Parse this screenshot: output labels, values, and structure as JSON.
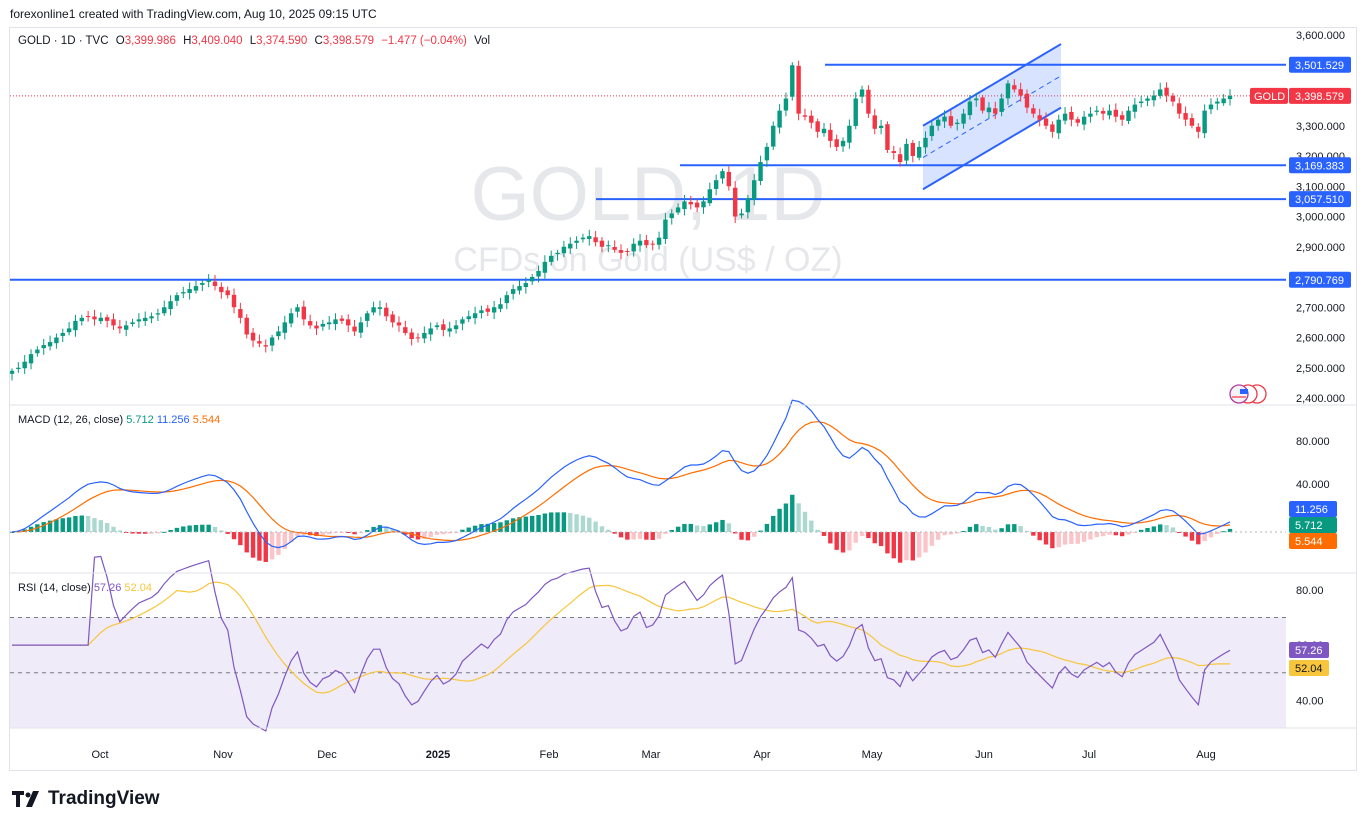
{
  "header": {
    "credit": "forexonline1 created with TradingView.com, Aug 10, 2025 09:15 UTC"
  },
  "legend": {
    "symbol": "GOLD · 1D · TVC",
    "open_label": "O",
    "open": "3,399.986",
    "high_label": "H",
    "high": "3,409.040",
    "low_label": "L",
    "low": "3,374.590",
    "close_label": "C",
    "close": "3,398.579",
    "change": "−1.477 (−0.04%)",
    "vol_label": "Vol"
  },
  "watermark": {
    "title": "GOLD, 1D",
    "subtitle": "CFDs on Gold (US$ / OZ)"
  },
  "macd_legend": {
    "label": "MACD (12, 26, close)",
    "v1": "5.712",
    "v2": "11.256",
    "v3": "5.544"
  },
  "rsi_legend": {
    "label": "RSI (14, close)",
    "v1": "57.26",
    "v2": "52.04"
  },
  "brand": {
    "name": "TradingView"
  },
  "colors": {
    "up": "#089981",
    "down": "#f23645",
    "macd": "#2962ff",
    "signal": "#ff6d00",
    "rsi": "#7e57c2",
    "rsi_ma": "#f7c63c",
    "line": "#2962ff"
  },
  "chart_data": [
    {
      "type": "candlestick",
      "title": "GOLD · 1D · TVC",
      "ylim": [
        2400,
        3600
      ],
      "y_ticks": [
        "3,600.000",
        "3,500.000",
        "3,400.000",
        "3,300.000",
        "3,200.000",
        "3,100.000",
        "3,000.000",
        "2,900.000",
        "2,800.000",
        "2,700.000",
        "2,600.000",
        "2,500.000",
        "2,400.000"
      ],
      "x_ticks": [
        "Oct",
        "Nov",
        "Dec",
        "2025",
        "Feb",
        "Mar",
        "Apr",
        "May",
        "Jun",
        "Jul",
        "Aug"
      ],
      "horizontal_levels": [
        {
          "value": 3501.529,
          "label": "3,501.529"
        },
        {
          "value": 3169.383,
          "label": "3,169.383"
        },
        {
          "value": 3057.51,
          "label": "3,057.510"
        },
        {
          "value": 2790.769,
          "label": "2,790.769"
        }
      ],
      "current_price": {
        "symbol": "GOLD",
        "value": 3398.579,
        "label": "3,398.579"
      },
      "channel": {
        "upper_start": 3300,
        "upper_end": 3570,
        "lower_start": 3090,
        "lower_end": 3360
      },
      "series_close": [
        2490,
        2500,
        2520,
        2545,
        2560,
        2575,
        2585,
        2600,
        2615,
        2630,
        2655,
        2665,
        2670,
        2660,
        2665,
        2655,
        2640,
        2630,
        2640,
        2650,
        2660,
        2665,
        2670,
        2680,
        2700,
        2720,
        2740,
        2750,
        2760,
        2770,
        2780,
        2790,
        2770,
        2750,
        2740,
        2700,
        2665,
        2610,
        2590,
        2580,
        2570,
        2600,
        2620,
        2650,
        2680,
        2700,
        2660,
        2640,
        2630,
        2645,
        2650,
        2660,
        2655,
        2640,
        2620,
        2650,
        2680,
        2700,
        2700,
        2670,
        2650,
        2640,
        2615,
        2595,
        2600,
        2615,
        2630,
        2640,
        2625,
        2630,
        2640,
        2660,
        2670,
        2680,
        2690,
        2685,
        2700,
        2710,
        2740,
        2760,
        2770,
        2780,
        2800,
        2820,
        2850,
        2870,
        2880,
        2900,
        2910,
        2920,
        2930,
        2935,
        2915,
        2900,
        2905,
        2890,
        2880,
        2885,
        2910,
        2920,
        2905,
        2910,
        2930,
        2990,
        3010,
        3030,
        3050,
        3040,
        3030,
        3050,
        3090,
        3120,
        3150,
        3100,
        3000,
        3010,
        3060,
        3120,
        3180,
        3230,
        3300,
        3350,
        3390,
        3500,
        3340,
        3330,
        3310,
        3280,
        3290,
        3250,
        3230,
        3250,
        3300,
        3390,
        3420,
        3340,
        3290,
        3300,
        3220,
        3210,
        3180,
        3240,
        3200,
        3230,
        3260,
        3300,
        3320,
        3330,
        3300,
        3310,
        3340,
        3380,
        3390,
        3350,
        3360,
        3340,
        3390,
        3440,
        3420,
        3400,
        3360,
        3340,
        3320,
        3300,
        3280,
        3320,
        3340,
        3320,
        3310,
        3330,
        3340,
        3350,
        3340,
        3350,
        3330,
        3320,
        3350,
        3370,
        3380,
        3390,
        3400,
        3420,
        3400,
        3380,
        3340,
        3320,
        3300,
        3280,
        3350,
        3370,
        3380,
        3390,
        3399
      ]
    },
    {
      "type": "line",
      "title": "MACD (12, 26, close)",
      "y_ticks": [
        "80.000",
        "40.000"
      ],
      "series": [
        {
          "name": "MACD",
          "last": 5.712
        },
        {
          "name": "Signal",
          "last": 11.256
        },
        {
          "name": "Histogram",
          "last": 5.544
        }
      ],
      "value_labels": [
        "11.256",
        "5.712",
        "5.544"
      ]
    },
    {
      "type": "line",
      "title": "RSI (14, close)",
      "ylim": [
        30,
        85
      ],
      "y_ticks": [
        "80.00",
        "60.00",
        "40.00"
      ],
      "bands": [
        70,
        50,
        30
      ],
      "value_labels": [
        "57.26",
        "52.04"
      ]
    }
  ]
}
